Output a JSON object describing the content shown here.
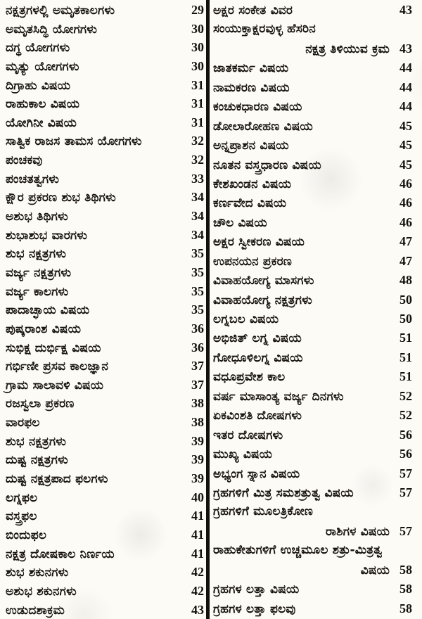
{
  "document": {
    "kind": "book-table-of-contents-scan",
    "language": "Kannada",
    "colors": {
      "ink": "#17120d",
      "paper": "#fcfbf6",
      "divider_rule": "#14100a"
    },
    "left_column": {
      "entries": [
        {
          "title": "ನಕ್ಷತ್ರಗಳಲ್ಲಿ ಅಮೃತಕಾಲಗಳು",
          "page": "29"
        },
        {
          "title": "ಅಮೃತಸಿದ್ಧಿ ಯೋಗಗಳು",
          "page": "30"
        },
        {
          "title": "ದಗ್ಧ ಯೋಗಗಳು",
          "page": "30"
        },
        {
          "title": "ಮೃತ್ಯು ಯೋಗಗಳು",
          "page": "30"
        },
        {
          "title": "ದಿಗ್ರಾಹು ವಿಷಯ",
          "page": "31"
        },
        {
          "title": "ರಾಹುಕಾಲ ವಿಷಯ",
          "page": "31"
        },
        {
          "title": "ಯೋಗಿನೀ ವಿಷಯ",
          "page": "31"
        },
        {
          "title": "ಸಾತ್ವಿಕ ರಾಜಸ ತಾಮಸ ಯೋಗಗಳು",
          "page": "32"
        },
        {
          "title": "ಪಂಚಕವು",
          "page": "32"
        },
        {
          "title": "ಪಂಚತತ್ವಗಳು",
          "page": "33"
        },
        {
          "title": "ಕ್ಷೌರ ಪ್ರಕರಣ ಶುಭ ತಿಥಿಗಳು",
          "page": "34"
        },
        {
          "title": "ಅಶುಭ ತಿಥಿಗಳು",
          "page": "34"
        },
        {
          "title": "ಶುಭಾಶುಭ ವಾರಗಳು",
          "page": "34"
        },
        {
          "title": "ಶುಭ ನಕ್ಷತ್ರಗಳು",
          "page": "35"
        },
        {
          "title": "ವರ್ಜ್ಯ ನಕ್ಷತ್ರಗಳು",
          "page": "35"
        },
        {
          "title": "ವರ್ಜ್ಯ ಕಾಲಗಳು",
          "page": "35"
        },
        {
          "title": "ಪಾದಾಚ್ಛಾಯ ವಿಷಯ",
          "page": "35"
        },
        {
          "title": "ಪುಷ್ಕರಾಂಶ ವಿಷಯ",
          "page": "36"
        },
        {
          "title": "ಸುಭಿಕ್ಷ ದುರ್ಭಿಕ್ಷ ವಿಷಯ",
          "page": "36"
        },
        {
          "title": "ಗರ್ಭಿಣೀ ಪ್ರಸವ ಕಾಲಜ್ಞಾನ",
          "page": "37"
        },
        {
          "title": "ಗ್ರಾಮ ಸಾಲಾವಳಿ ವಿಷಯ",
          "page": "37"
        },
        {
          "title": "ರಜಸ್ವಲಾ ಪ್ರಕರಣ",
          "page": "38"
        },
        {
          "title": "ವಾರಫಲ",
          "page": "38"
        },
        {
          "title": "ಶುಭ ನಕ್ಷತ್ರಗಳು",
          "page": "39"
        },
        {
          "title": "ದುಷ್ಟ ನಕ್ಷತ್ರಗಳು",
          "page": "39"
        },
        {
          "title": "ದುಷ್ಟ ನಕ್ಷತ್ರಪಾದ ಫಲಗಳು",
          "page": "39"
        },
        {
          "title": "ಲಗ್ನಫಲ",
          "page": "40"
        },
        {
          "title": "ವಸ್ತ್ರಫಲ",
          "page": "41"
        },
        {
          "title": "ಬಿಂದುಫಲ",
          "page": "41"
        },
        {
          "title": "ನಕ್ಷತ್ರ ದೋಷಕಾಲ ನಿರ್ಣಯ",
          "page": "41"
        },
        {
          "title": "ಶುಭ ಶಕುನಗಳು",
          "page": "42"
        },
        {
          "title": "ಅಶುಭ ಶಕುನಗಳು",
          "page": "42"
        },
        {
          "title": "ಉಡುದಶಾಕ್ರಮ",
          "page": "43"
        }
      ]
    },
    "right_column": {
      "entries": [
        {
          "title": "ಅಕ್ಷರ ಸಂಕೇತ ವಿವರ",
          "page": "43"
        },
        {
          "title": "ಸಂಯುಕ್ತಾಕ್ಷರವುಳ್ಳ ಹೆಸರಿನ",
          "title_line2": "ನಕ್ಷತ್ರ ತಿಳಿಯುವ ಕ್ರಮ",
          "page": "43"
        },
        {
          "title": "ಜಾತಕರ್ಮ ವಿಷಯ",
          "page": "44"
        },
        {
          "title": "ನಾಮಕರಣ ವಿಷಯ",
          "page": "44"
        },
        {
          "title": "ಕಂಚುಕಧಾರಣ ವಿಷಯ",
          "page": "44"
        },
        {
          "title": "ಡೋಲಾರೋಹಣ ವಿಷಯ",
          "page": "45"
        },
        {
          "title": "ಅನ್ನಪ್ರಾಶನ ವಿಷಯ",
          "page": "45"
        },
        {
          "title": "ನೂತನ ವಸ್ತ್ರಧಾರಣ ವಿಷಯ",
          "page": "45"
        },
        {
          "title": "ಕೇಶಖಂಡನ ವಿಷಯ",
          "page": "46"
        },
        {
          "title": "ಕರ್ಣವೇದ ವಿಷಯ",
          "page": "46"
        },
        {
          "title": "ಚೌಲ ವಿಷಯ",
          "page": "46"
        },
        {
          "title": "ಅಕ್ಷರ ಸ್ವೀಕರಣ ವಿಷಯ",
          "page": "47"
        },
        {
          "title": "ಉಪನಯನ ಪ್ರಕರಣ",
          "page": "47"
        },
        {
          "title": "ವಿವಾಹಯೋಗ್ಯ ಮಾಸಗಳು",
          "page": "48"
        },
        {
          "title": "ವಿವಾಹಯೋಗ್ಯ ನಕ್ಷತ್ರಗಳು",
          "page": "50"
        },
        {
          "title": "ಲಗ್ನಬಲ ವಿಷಯ",
          "page": "50"
        },
        {
          "title": "ಅಭಿಜಿತ್ ಲಗ್ನ ವಿಷಯ",
          "page": "51"
        },
        {
          "title": "ಗೋಧೂಳಿಲಗ್ನ ವಿಷಯ",
          "page": "51"
        },
        {
          "title": "ವಧೂಪ್ರವೇಶ ಕಾಲ",
          "page": "51"
        },
        {
          "title": "ವರ್ಷ ಮಾಸಾಂತ್ಯ ವರ್ಜ್ಯ ದಿನಗಳು",
          "page": "52"
        },
        {
          "title": "ಏಕವಿಂಶತಿ ದೋಷಗಳು",
          "page": "52"
        },
        {
          "title": "ಇತರ ದೋಷಗಳು",
          "page": "56"
        },
        {
          "title": "ಮುಖ್ಯ ವಿಷಯ",
          "page": "56"
        },
        {
          "title": "ಅಭ್ಯಂಗ ಸ್ನಾನ ವಿಷಯ",
          "page": "57"
        },
        {
          "title": "ಗ್ರಹಗಳಿಗೆ ಮಿತ್ರ ಸಮಶತ್ರುತ್ವ ವಿಷಯ",
          "page": "57"
        },
        {
          "title": "ಗ್ರಹಗಳಿಗೆ ಮೂಲತ್ರಿಕೋಣ",
          "title_line2": "ರಾಶಿಗಳ ವಿಷಯ",
          "page": "57"
        },
        {
          "title": "ರಾಹುಕೇತುಗಳಿಗೆ ಉಚ್ಚಮೂಲ ಶತ್ರು-ಮಿತ್ರತ್ವ",
          "title_line2": "ವಿಷಯ",
          "page": "58"
        },
        {
          "title": "ಗ್ರಹಗಳ ಲತ್ತಾ ವಿಷಯ",
          "page": "58"
        },
        {
          "title": "ಗ್ರಹಗಳ ಲತ್ತಾ ಫಲವು",
          "page": "58"
        }
      ]
    }
  }
}
